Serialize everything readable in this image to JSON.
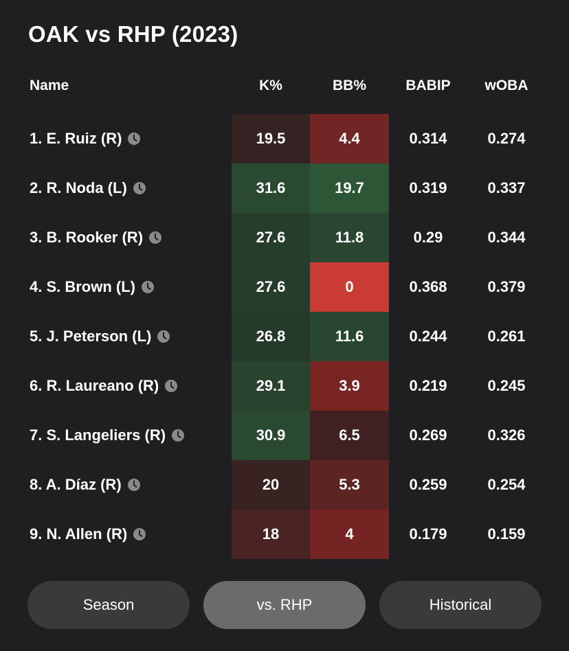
{
  "title": "OAK vs RHP (2023)",
  "columns": {
    "name": "Name",
    "k": "K%",
    "bb": "BB%",
    "babip": "BABIP",
    "woba": "wOBA"
  },
  "rows": [
    {
      "name": "1. E. Ruiz (R)",
      "k": "19.5",
      "bb": "4.4",
      "babip": "0.314",
      "woba": "0.274",
      "k_color": "#352222",
      "bb_color": "#712524"
    },
    {
      "name": "2. R. Noda (L)",
      "k": "31.6",
      "bb": "19.7",
      "babip": "0.319",
      "woba": "0.337",
      "k_color": "#294a31",
      "bb_color": "#2d5636"
    },
    {
      "name": "3. B. Rooker (R)",
      "k": "27.6",
      "bb": "11.8",
      "babip": "0.29",
      "woba": "0.344",
      "k_color": "#263d2c",
      "bb_color": "#284630"
    },
    {
      "name": "4. S. Brown (L)",
      "k": "27.6",
      "bb": "0",
      "babip": "0.368",
      "woba": "0.379",
      "k_color": "#263d2c",
      "bb_color": "#c93b34"
    },
    {
      "name": "5. J. Peterson (L)",
      "k": "26.8",
      "bb": "11.6",
      "babip": "0.244",
      "woba": "0.261",
      "k_color": "#24392a",
      "bb_color": "#284630"
    },
    {
      "name": "6. R. Laureano (R)",
      "k": "29.1",
      "bb": "3.9",
      "babip": "0.219",
      "woba": "0.245",
      "k_color": "#28442f",
      "bb_color": "#782423"
    },
    {
      "name": "7. S. Langeliers (R)",
      "k": "30.9",
      "bb": "6.5",
      "babip": "0.269",
      "woba": "0.326",
      "k_color": "#294a31",
      "bb_color": "#402020"
    },
    {
      "name": "8. A. Díaz (R)",
      "k": "20",
      "bb": "5.3",
      "babip": "0.259",
      "woba": "0.254",
      "k_color": "#382222",
      "bb_color": "#5c2422"
    },
    {
      "name": "9. N. Allen (R)",
      "k": "18",
      "bb": "4",
      "babip": "0.179",
      "woba": "0.159",
      "k_color": "#4a2323",
      "bb_color": "#762423"
    }
  ],
  "buttons": [
    {
      "label": "Season",
      "active": false
    },
    {
      "label": "vs. RHP",
      "active": true
    },
    {
      "label": "Historical",
      "active": false
    }
  ],
  "icons": {
    "row_icon": "clock-icon"
  }
}
